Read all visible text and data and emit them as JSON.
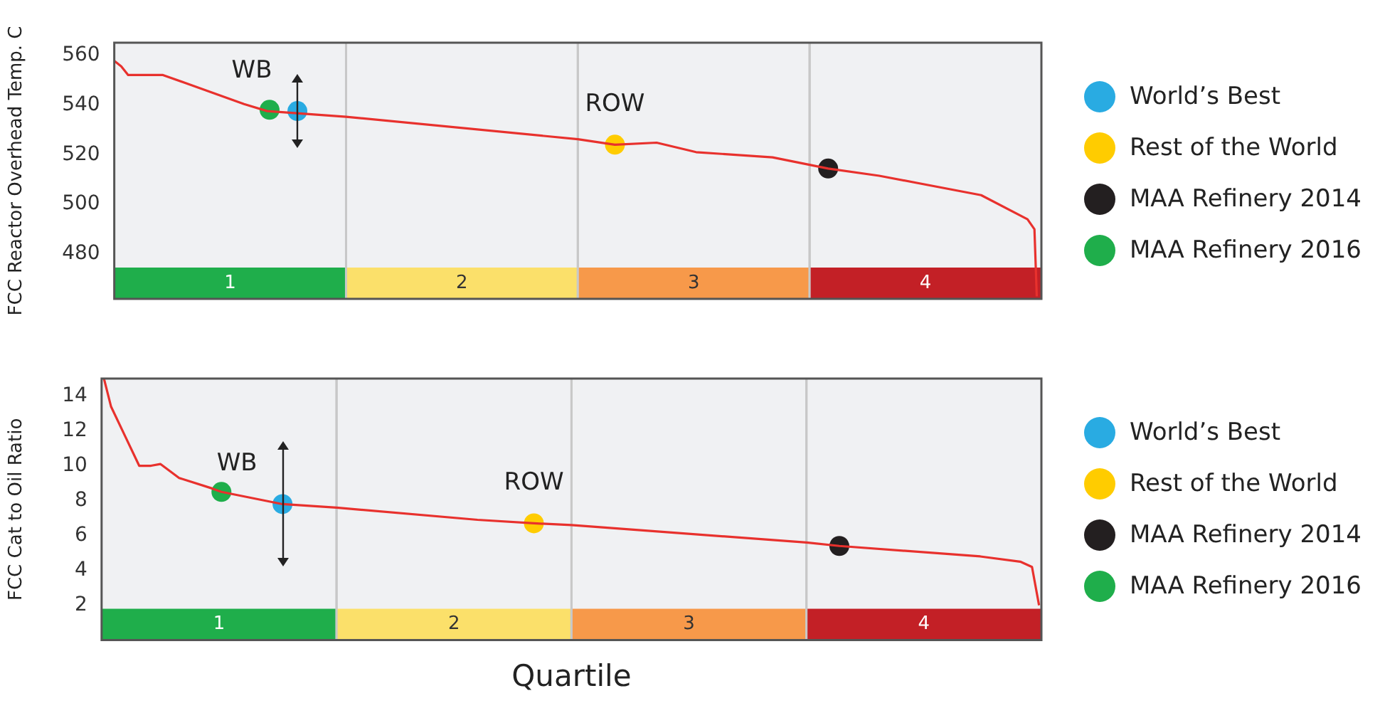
{
  "chart_data": [
    {
      "type": "line",
      "ylabel": "FCC Reactor Overhead Temp. C",
      "xlim": [
        0.5,
        4.5
      ],
      "xticks": [
        1,
        2,
        3,
        4
      ],
      "ylim": [
        462,
        565
      ],
      "yticks": [
        480,
        500,
        520,
        540,
        560
      ],
      "legend": "right",
      "marker": "none",
      "line_style": "solid",
      "bands": [
        {
          "axis": "x",
          "from": 0.5,
          "to": 1.5,
          "color": "#1fae4b"
        },
        {
          "axis": "x",
          "from": 1.5,
          "to": 2.5,
          "color": "#fbe06a"
        },
        {
          "axis": "x",
          "from": 2.5,
          "to": 3.5,
          "color": "#f7994a"
        },
        {
          "axis": "x",
          "from": 3.5,
          "to": 4.5,
          "color": "#c32026"
        }
      ],
      "annotations": [
        "WB",
        "ROW"
      ],
      "series": [
        {
          "color": "#e8312d",
          "x": [
            0.5,
            0.53,
            0.56,
            0.71,
            0.81,
            1.06,
            1.16,
            1.5,
            2.5,
            2.66,
            2.84,
            3.01,
            3.34,
            3.58,
            3.8,
            4.24,
            4.44,
            4.47,
            4.48
          ],
          "values": [
            557.7,
            555.5,
            552,
            552,
            548.7,
            540.3,
            537.5,
            535.2,
            526.2,
            524,
            524.8,
            521,
            518.9,
            514.4,
            511.5,
            503.7,
            494,
            490,
            463
          ]
        },
        {
          "type": "scatter",
          "name": "World’s Best",
          "color": "#29abe2",
          "marker": "circle",
          "x": [
            1.29
          ],
          "values": [
            537.5
          ]
        },
        {
          "type": "scatter",
          "name": "Rest of the World",
          "color": "#ffcc00",
          "marker": "circle",
          "x": [
            2.66
          ],
          "values": [
            524
          ]
        },
        {
          "type": "scatter",
          "name": "MAA Refinery 2014",
          "color": "#231f20",
          "marker": "circle",
          "x": [
            3.58
          ],
          "values": [
            514.4
          ]
        },
        {
          "type": "scatter",
          "name": "MAA Refinery 2016",
          "color": "#1fae4b",
          "marker": "circle",
          "x": [
            1.17
          ],
          "values": [
            538
          ]
        }
      ]
    },
    {
      "type": "line",
      "ylabel": "FCC Cat to Oil Ratio",
      "xlabel": "Quartile",
      "xlim": [
        0.5,
        4.5
      ],
      "xticks": [
        1,
        2,
        3,
        4
      ],
      "ylim": [
        0,
        15
      ],
      "yticks": [
        2,
        4,
        6,
        8,
        10,
        12,
        14
      ],
      "legend": "right",
      "marker": "none",
      "line_style": "solid",
      "bands": [
        {
          "axis": "x",
          "from": 0.5,
          "to": 1.5,
          "color": "#1fae4b"
        },
        {
          "axis": "x",
          "from": 1.5,
          "to": 2.5,
          "color": "#fbe06a"
        },
        {
          "axis": "x",
          "from": 2.5,
          "to": 3.5,
          "color": "#f7994a"
        },
        {
          "axis": "x",
          "from": 3.5,
          "to": 4.5,
          "color": "#c32026"
        }
      ],
      "annotations": [
        "WB",
        "ROW"
      ],
      "series": [
        {
          "color": "#e8312d",
          "x": [
            0.51,
            0.54,
            0.6,
            0.66,
            0.71,
            0.75,
            0.83,
            0.97,
            1.01,
            1.27,
            1.5,
            2.1,
            2.34,
            2.5,
            3.5,
            3.64,
            4.24,
            4.41,
            4.46,
            4.49
          ],
          "values": [
            15,
            13.4,
            11.7,
            10,
            10,
            10.1,
            9.3,
            8.7,
            8.5,
            7.8,
            7.6,
            6.9,
            6.7,
            6.6,
            5.6,
            5.4,
            4.8,
            4.5,
            4.2,
            2
          ]
        },
        {
          "type": "scatter",
          "name": "World’s Best",
          "color": "#29abe2",
          "marker": "circle",
          "x": [
            1.27
          ],
          "values": [
            7.8
          ]
        },
        {
          "type": "scatter",
          "name": "Rest of the World",
          "color": "#ffcc00",
          "marker": "circle",
          "x": [
            2.34
          ],
          "values": [
            6.7
          ]
        },
        {
          "type": "scatter",
          "name": "MAA Refinery 2014",
          "color": "#231f20",
          "marker": "circle",
          "x": [
            3.64
          ],
          "values": [
            5.4
          ]
        },
        {
          "type": "scatter",
          "name": "MAA Refinery 2016",
          "color": "#1fae4b",
          "marker": "circle",
          "x": [
            1.01
          ],
          "values": [
            8.5
          ]
        }
      ]
    }
  ]
}
